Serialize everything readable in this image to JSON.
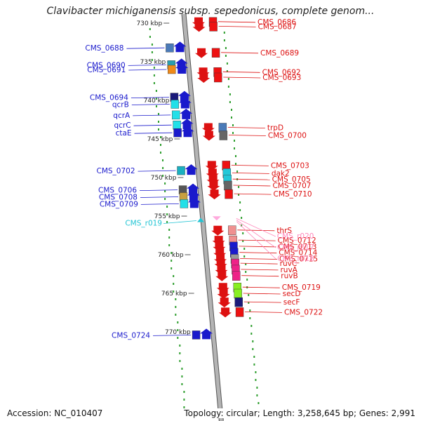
{
  "title": "Clavibacter michiganensis subsp. sepedonicus, complete genom...",
  "footer": {
    "accession": "Accession: NC_010407",
    "summary": "Topology: circular; Length: 3,258,645 bp; Genes: 2,991"
  },
  "colors": {
    "forward_label": "#1a1acc",
    "reverse_label": "#dd1111",
    "rrna_label": "#ff88bb",
    "trna_label": "#22c4d4",
    "backbone": "#b4b4b4",
    "backbone_outline": "#555555",
    "gc_tick": "#2e9e2e"
  },
  "ticks": [
    {
      "kbp": 730,
      "label": "730 kbp"
    },
    {
      "kbp": 735,
      "label": "735 kbp"
    },
    {
      "kbp": 740,
      "label": "740 kbp"
    },
    {
      "kbp": 745,
      "label": "745 kbp"
    },
    {
      "kbp": 750,
      "label": "750 kbp"
    },
    {
      "kbp": 755,
      "label": "755 kbp"
    },
    {
      "kbp": 760,
      "label": "760 kbp"
    },
    {
      "kbp": 765,
      "label": "765 kbp"
    },
    {
      "kbp": 770,
      "label": "770 kbp"
    }
  ],
  "forward_genes": [
    {
      "name": "CMS_0688",
      "kbp": 733.2,
      "color": "#4a7ab8"
    },
    {
      "name": "CMS_0690",
      "kbp": 735.4,
      "color": "#2a9eb0"
    },
    {
      "name": "CMS_0691",
      "kbp": 736.0,
      "color": "#f08a1a"
    },
    {
      "name": "CMS_0694",
      "kbp": 739.6,
      "color": "#1a1a7a"
    },
    {
      "name": "qcrB",
      "kbp": 740.5,
      "color": "#22e0e8"
    },
    {
      "name": "qcrA",
      "kbp": 741.9,
      "color": "#22e0e8"
    },
    {
      "name": "qcrC",
      "kbp": 743.2,
      "color": "#22e0e8"
    },
    {
      "name": "ctaE",
      "kbp": 744.2,
      "color": "#1a1acc"
    },
    {
      "name": "CMS_0702",
      "kbp": 749.1,
      "color": "#1ab0c0"
    },
    {
      "name": "CMS_0706",
      "kbp": 751.6,
      "color": "#555555"
    },
    {
      "name": "CMS_0708",
      "kbp": 752.5,
      "color": "#c8a040"
    },
    {
      "name": "CMS_0709",
      "kbp": 753.4,
      "color": "#22e0e8"
    },
    {
      "name": "CMS_0724",
      "kbp": 770.4,
      "color": "#1a1acc"
    }
  ],
  "trna_genes": [
    {
      "name": "CMS_r019",
      "kbp": 755.5
    }
  ],
  "reverse_genes": [
    {
      "name": "CMS_0686",
      "kbp": 729.8,
      "color": "#ee1111"
    },
    {
      "name": "CMS_0687",
      "kbp": 730.4,
      "color": "#ee1111"
    },
    {
      "name": "CMS_0689",
      "kbp": 733.8,
      "color": "#ee1111"
    },
    {
      "name": "CMS_0692",
      "kbp": 736.3,
      "color": "#ee1111"
    },
    {
      "name": "CMS_0693",
      "kbp": 737.0,
      "color": "#ee1111"
    },
    {
      "name": "trpD",
      "kbp": 743.5,
      "color": "#4a7ab8"
    },
    {
      "name": "CMS_0700",
      "kbp": 744.5,
      "color": "#666666"
    },
    {
      "name": "CMS_0703",
      "kbp": 748.4,
      "color": "#ee1111"
    },
    {
      "name": "dak2",
      "kbp": 749.4,
      "color": "#22c8d8"
    },
    {
      "name": "CMS_0705",
      "kbp": 750.2,
      "color": "#22c8d8"
    },
    {
      "name": "CMS_0707",
      "kbp": 751.0,
      "color": "#666666"
    },
    {
      "name": "CMS_0710",
      "kbp": 752.1,
      "color": "#ee1111"
    },
    {
      "name": "thrS",
      "kbp": 756.8,
      "color": "#f09090"
    },
    {
      "name": "CMS_0712",
      "kbp": 758.1,
      "color": "#f09090"
    },
    {
      "name": "CMS_0713",
      "kbp": 758.9,
      "color": "#1a1acc"
    },
    {
      "name": "CMS_0714",
      "kbp": 759.7,
      "color": "#1a1acc"
    },
    {
      "name": "CMS_0715",
      "kbp": 760.5,
      "color": "#999999"
    },
    {
      "name": "ruvC",
      "kbp": 761.1,
      "color": "#ee2288"
    },
    {
      "name": "ruvA",
      "kbp": 761.9,
      "color": "#ee2288"
    },
    {
      "name": "ruvB",
      "kbp": 762.7,
      "color": "#ee2288"
    },
    {
      "name": "CMS_0719",
      "kbp": 764.2,
      "color": "#88ee22"
    },
    {
      "name": "secD",
      "kbp": 765.0,
      "color": "#88ee22"
    },
    {
      "name": "secF",
      "kbp": 766.1,
      "color": "#1a1a7a"
    },
    {
      "name": "CMS_0722",
      "kbp": 767.4,
      "color": "#ee1111"
    }
  ],
  "rrna_genes": [
    {
      "name": "CMS_r020",
      "kbp": 755.3
    },
    {
      "name": "CMS_r017",
      "kbp": 755.5
    },
    {
      "name": "CMS_r018",
      "kbp": 755.7
    }
  ]
}
